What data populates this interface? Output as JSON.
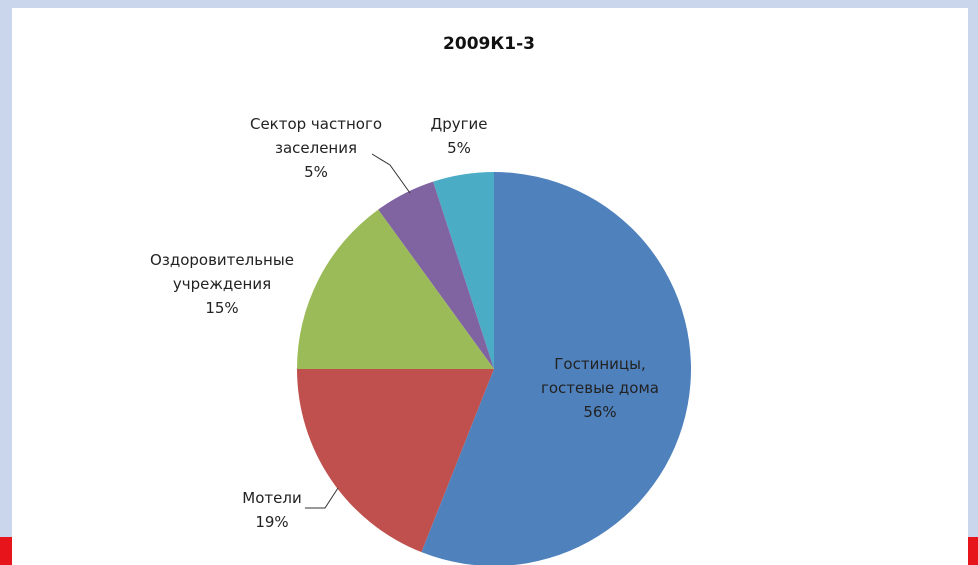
{
  "chart_data": {
    "type": "pie",
    "title": "2009К1-3",
    "categories": [
      "Гостиницы, гостевые дома",
      "Мотели",
      "Оздоровительные учреждения",
      "Сектор частного заселения",
      "Другие"
    ],
    "values": [
      56,
      19,
      15,
      5,
      5
    ],
    "value_labels": [
      "56%",
      "19%",
      "15%",
      "5%",
      "5%"
    ],
    "colors": [
      "#4f81bd",
      "#c0504d",
      "#9bbb59",
      "#8064a2",
      "#4bacc6"
    ]
  }
}
